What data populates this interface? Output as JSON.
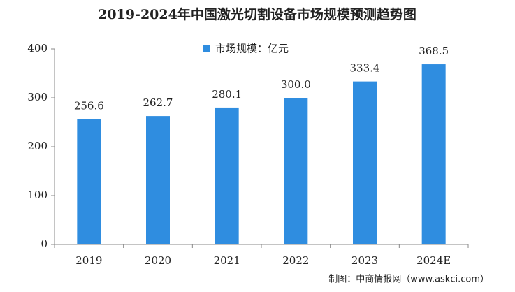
{
  "chart_data": {
    "type": "bar",
    "title": "2019-2024年中国激光切割设备市场规模预测趋势图",
    "categories": [
      "2019",
      "2020",
      "2021",
      "2022",
      "2023",
      "2024E"
    ],
    "series": [
      {
        "name": "市场规模：亿元",
        "color": "#2f8de0",
        "values": [
          256.6,
          262.7,
          280.1,
          300,
          333.4,
          368.5
        ],
        "value_labels": [
          "256.6",
          "262.7",
          "280.1",
          "300.0",
          "333.4",
          "368.5"
        ]
      }
    ],
    "ylim": [
      0,
      400
    ],
    "yticks": [
      0,
      100,
      200,
      300,
      400
    ],
    "source": "制图：中商情报网（www.askci.com）"
  }
}
